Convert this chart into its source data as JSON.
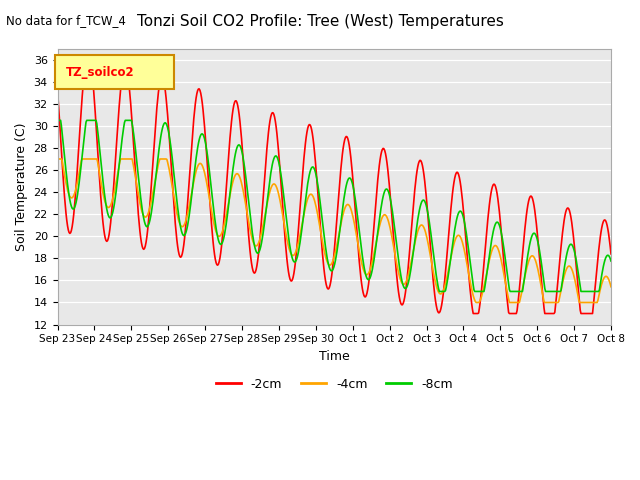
{
  "title": "Tonzi Soil CO2 Profile: Tree (West) Temperatures",
  "top_left_text": "No data for f_TCW_4",
  "ylabel": "Soil Temperature (C)",
  "xlabel": "Time",
  "legend_label": "TZ_soilco2",
  "series_labels": [
    "-2cm",
    "-4cm",
    "-8cm"
  ],
  "series_colors": [
    "#ff0000",
    "#ffa500",
    "#00cc00"
  ],
  "ylim": [
    12,
    37
  ],
  "yticks": [
    12,
    14,
    16,
    18,
    20,
    22,
    24,
    26,
    28,
    30,
    32,
    34,
    36
  ],
  "xtick_labels": [
    "Sep 23",
    "Sep 24",
    "Sep 25",
    "Sep 26",
    "Sep 27",
    "Sep 28",
    "Sep 29",
    "Sep 30",
    "Oct 1",
    "Oct 2",
    "Oct 3",
    "Oct 4",
    "Oct 5",
    "Oct 6",
    "Oct 7",
    "Oct 8"
  ],
  "background_color": "#e8e8e8",
  "fig_background": "#ffffff",
  "legend_box_color": "#ffff99",
  "legend_box_edge": "#cc8800"
}
